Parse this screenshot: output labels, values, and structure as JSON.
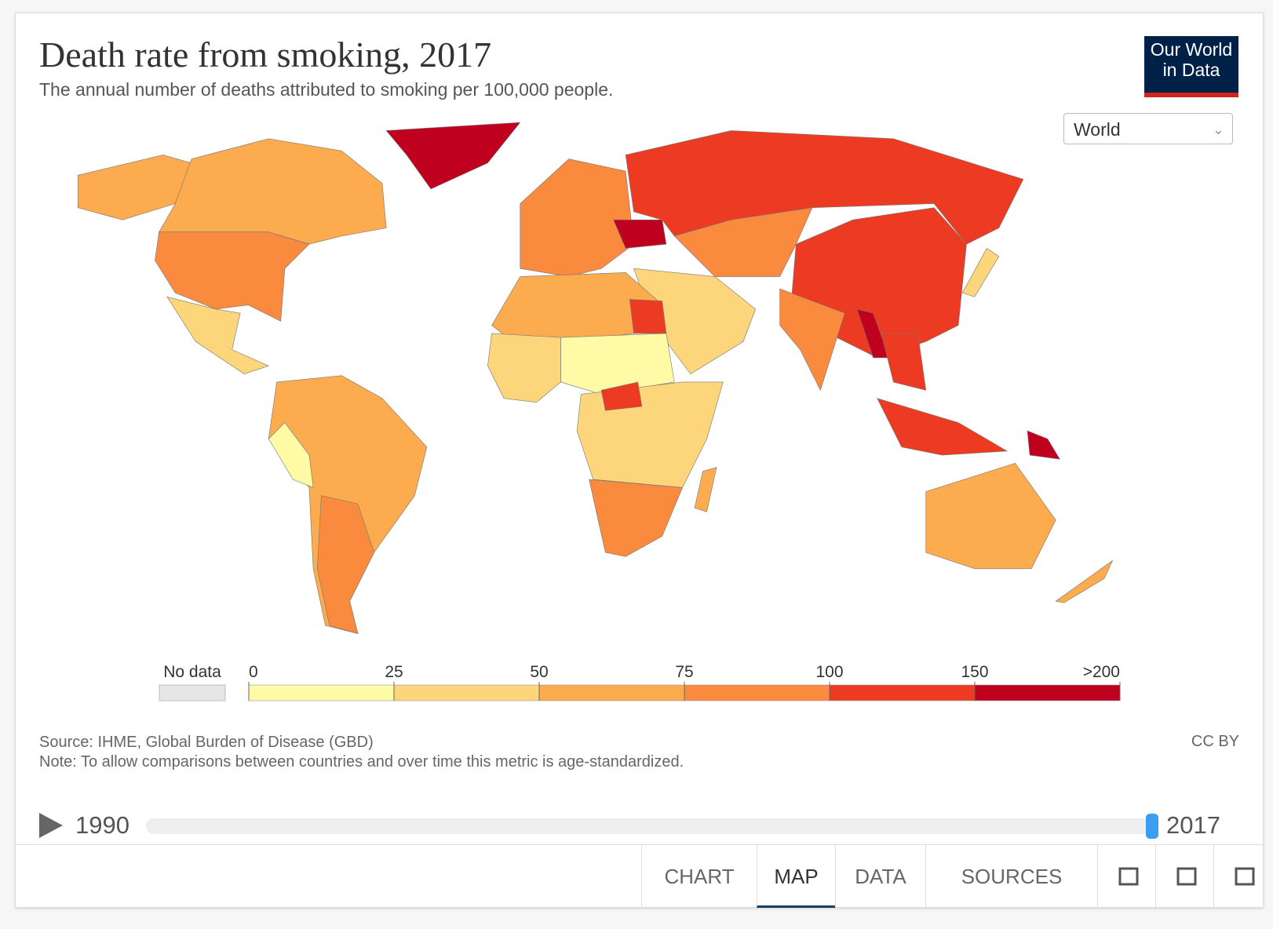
{
  "header": {
    "title": "Death rate from smoking, 2017",
    "subtitle": "The annual number of deaths attributed to smoking per 100,000 people.",
    "logo": [
      "Our World",
      "in Data"
    ]
  },
  "region_selector": "World",
  "legend": {
    "no_data_label": "No data",
    "no_data_color": "#e6e6e6",
    "ticks": [
      0,
      25,
      50,
      75,
      100,
      150,
      {
        "value": 200,
        "label": ">200"
      }
    ],
    "colors": [
      "#fffaa6",
      "#fdd57b",
      "#fcac4f",
      "#f98a3e",
      "#ec3b22",
      "#c0001f"
    ]
  },
  "footer": {
    "source": "Source: IHME, Global Burden of Disease (GBD)",
    "note": "Note: To allow comparisons between countries and over time this metric is age-standardized.",
    "license": "CC BY"
  },
  "timeline": {
    "start": "1990",
    "end": "2017"
  },
  "tabs": [
    "CHART",
    "MAP",
    "DATA",
    "SOURCES"
  ],
  "active_tab": "MAP"
}
